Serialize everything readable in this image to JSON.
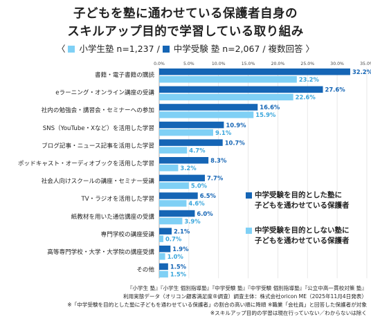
{
  "title_line1": "子どもを塾に通わせている保護者自身の",
  "title_line2": "スキルアップ目的で学習している取り組み",
  "subtitle": {
    "open": "〈",
    "elementary_label": "小学生塾 n=1,237 / ",
    "exam_label": "中学受験 塾 n=2,067 / 複数回答",
    "close": "〉"
  },
  "colors": {
    "exam": "#1565b5",
    "non_exam": "#7fd0f5"
  },
  "chart_data": {
    "type": "bar",
    "orientation": "horizontal",
    "categories": [
      "書籍・電子書籍の購読",
      "eラーニング・オンライン講座の受講",
      "社内の勉強会・講習会・セミナーへの参加",
      "SNS（YouTube・Xなど）を活用した学習",
      "ブログ記事・ニュース記事を活用した学習",
      "ポッドキャスト・オーディオブックを活用した学習",
      "社会人向けスクールの講座・セミナー受講",
      "TV・ラジオを活用した学習",
      "紙教材を用いた通信講座の受講",
      "専門学校の講座受講",
      "高等専門学校・大学・大学院の講座受講",
      "その他"
    ],
    "series": [
      {
        "name": "中学受験を目的とした塾に子どもを通わせている保護者",
        "values": [
          32.2,
          27.6,
          16.6,
          10.9,
          10.7,
          8.3,
          7.7,
          6.5,
          6.0,
          2.1,
          1.9,
          1.5
        ],
        "labels": [
          "32.2%",
          "27.6%",
          "16.6%",
          "10.9%",
          "10.7%",
          "8.3%",
          "7.7%",
          "6.5%",
          "6.0%",
          "2.1%",
          "1.9%",
          "1.5%"
        ]
      },
      {
        "name": "中学受験を目的としない塾に子どもを通わせている保護者",
        "values": [
          23.2,
          22.6,
          15.9,
          9.1,
          4.7,
          3.2,
          5.0,
          4.6,
          3.9,
          0.7,
          1.0,
          1.5
        ],
        "labels": [
          "23.2%",
          "22.6%",
          "15.9%",
          "9.1%",
          "4.7%",
          "3.2%",
          "5.0%",
          "4.6%",
          "3.9%",
          "0.7%",
          "1.0%",
          "1.5%"
        ]
      }
    ],
    "xlim": [
      0,
      35
    ],
    "xticks": [
      "0.0%",
      "5.0%",
      "10.0%",
      "15.0%",
      "20.0%",
      "25.0%",
      "30.0%",
      "35.0%"
    ],
    "grid": true,
    "legend_position": "right"
  },
  "legend": {
    "exam_line1": "中学受験を目的とした塾に",
    "exam_line2": "子どもを通わせている保護者",
    "non_exam_line1": "中学受験を目的としない塾に",
    "non_exam_line2": "子どもを通わせている保護者"
  },
  "footnotes": [
    "『小学生 塾』『小学生 個別指導塾』『中学受験 塾』『中学受験 個別指導塾』『公立中高一貫校対策 塾』",
    "利用実態データ（オリコン顧客満足度®調査）調査主体：株式会社oricon ME（2025年11月4日発表）",
    "※「中学受験を目的とした塾に子どもを通わせている保護者」の割合の高い順に降順 ※職業「会社員」と回答した保護者が対象",
    "※スキルアップ目的の学習は現在行っていない／わからないは除く"
  ]
}
